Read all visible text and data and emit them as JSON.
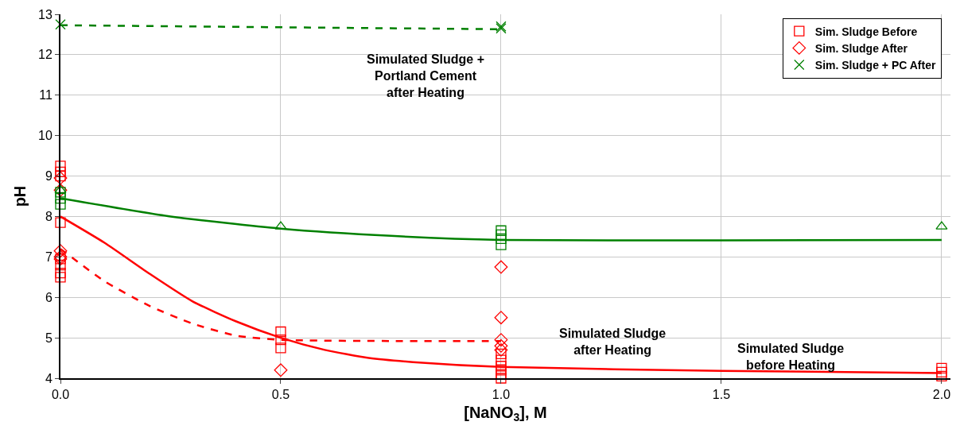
{
  "chart_data": {
    "type": "scatter",
    "xlabel": "[NaNO$_{3}$], M",
    "ylabel": "pH",
    "xlim": [
      0,
      2.02
    ],
    "ylim": [
      4,
      13
    ],
    "xticks": [
      {
        "value": 0,
        "label": "0.0"
      },
      {
        "value": 0.5,
        "label": "0.5"
      },
      {
        "value": 1,
        "label": "1.0"
      },
      {
        "value": 1.5,
        "label": "1.5"
      },
      {
        "value": 2,
        "label": "2.0"
      }
    ],
    "yticks": [
      4,
      5,
      6,
      7,
      8,
      9,
      10,
      11,
      12,
      13
    ],
    "grid": true,
    "legend": "top right",
    "series": [
      {
        "name": "Sim. Sludge Before",
        "marker": "square",
        "color": "#ff0000",
        "x": [
          0,
          0,
          0,
          0,
          0,
          0,
          0,
          0,
          0.5,
          0.5,
          0.5,
          1,
          1,
          1,
          1,
          1,
          1,
          2,
          2,
          2
        ],
        "values": [
          9.25,
          9.1,
          9.0,
          7.85,
          6.95,
          6.8,
          6.6,
          6.5,
          5.15,
          4.95,
          4.75,
          4.6,
          4.45,
          4.3,
          4.2,
          4.1,
          4.0,
          4.25,
          4.15,
          4.05
        ]
      },
      {
        "name": "Sim. Sludge After",
        "marker": "diamond",
        "color": "#ff0000",
        "x": [
          0,
          0,
          0,
          0,
          0,
          0.5,
          1,
          1,
          1,
          1,
          1
        ],
        "values": [
          8.95,
          8.65,
          7.15,
          7.0,
          6.95,
          4.2,
          6.75,
          5.5,
          4.95,
          4.8,
          4.7
        ]
      },
      {
        "name": null,
        "marker": "square",
        "color": "#008000",
        "x": [
          0,
          0,
          0,
          1,
          1,
          1,
          1
        ],
        "values": [
          8.6,
          8.45,
          8.3,
          7.65,
          7.55,
          7.45,
          7.3
        ]
      },
      {
        "name": null,
        "marker": "triangle",
        "color": "#008000",
        "x": [
          0,
          0.5,
          2
        ],
        "values": [
          8.65,
          7.75,
          7.75
        ]
      },
      {
        "name": "Sim. Sludge + PC After",
        "marker": "cross",
        "color": "#008000",
        "x": [
          0,
          1,
          1
        ],
        "values": [
          12.75,
          12.65,
          12.7
        ]
      },
      {
        "type": "line",
        "line_style": "solid",
        "color": "#ff0000",
        "x": [
          0,
          0.1,
          0.2,
          0.3,
          0.4,
          0.5,
          0.6,
          0.7,
          0.8,
          1.0,
          1.5,
          2.0
        ],
        "values": [
          8.0,
          7.35,
          6.6,
          5.9,
          5.4,
          5.0,
          4.7,
          4.5,
          4.4,
          4.28,
          4.18,
          4.13
        ]
      },
      {
        "type": "line",
        "line_style": "dashed",
        "color": "#ff0000",
        "x": [
          0,
          0.1,
          0.2,
          0.3,
          0.4,
          0.5,
          0.75,
          1.0
        ],
        "values": [
          7.2,
          6.4,
          5.8,
          5.35,
          5.05,
          4.95,
          4.92,
          4.92
        ]
      },
      {
        "type": "line",
        "line_style": "solid",
        "color": "#008000",
        "x": [
          0,
          0.25,
          0.5,
          0.75,
          1.0,
          1.5,
          2.0
        ],
        "values": [
          8.45,
          8.0,
          7.7,
          7.52,
          7.42,
          7.41,
          7.42
        ]
      },
      {
        "type": "line",
        "line_style": "dashed",
        "color": "#008000",
        "x": [
          0,
          1
        ],
        "values": [
          12.73,
          12.63
        ]
      }
    ],
    "annotations": [
      "Simulated Sludge +\nPortland Cement\nafter Heating",
      "Simulated Sludge\nafter Heating",
      "Simulated Sludge\nbefore Heating"
    ]
  }
}
